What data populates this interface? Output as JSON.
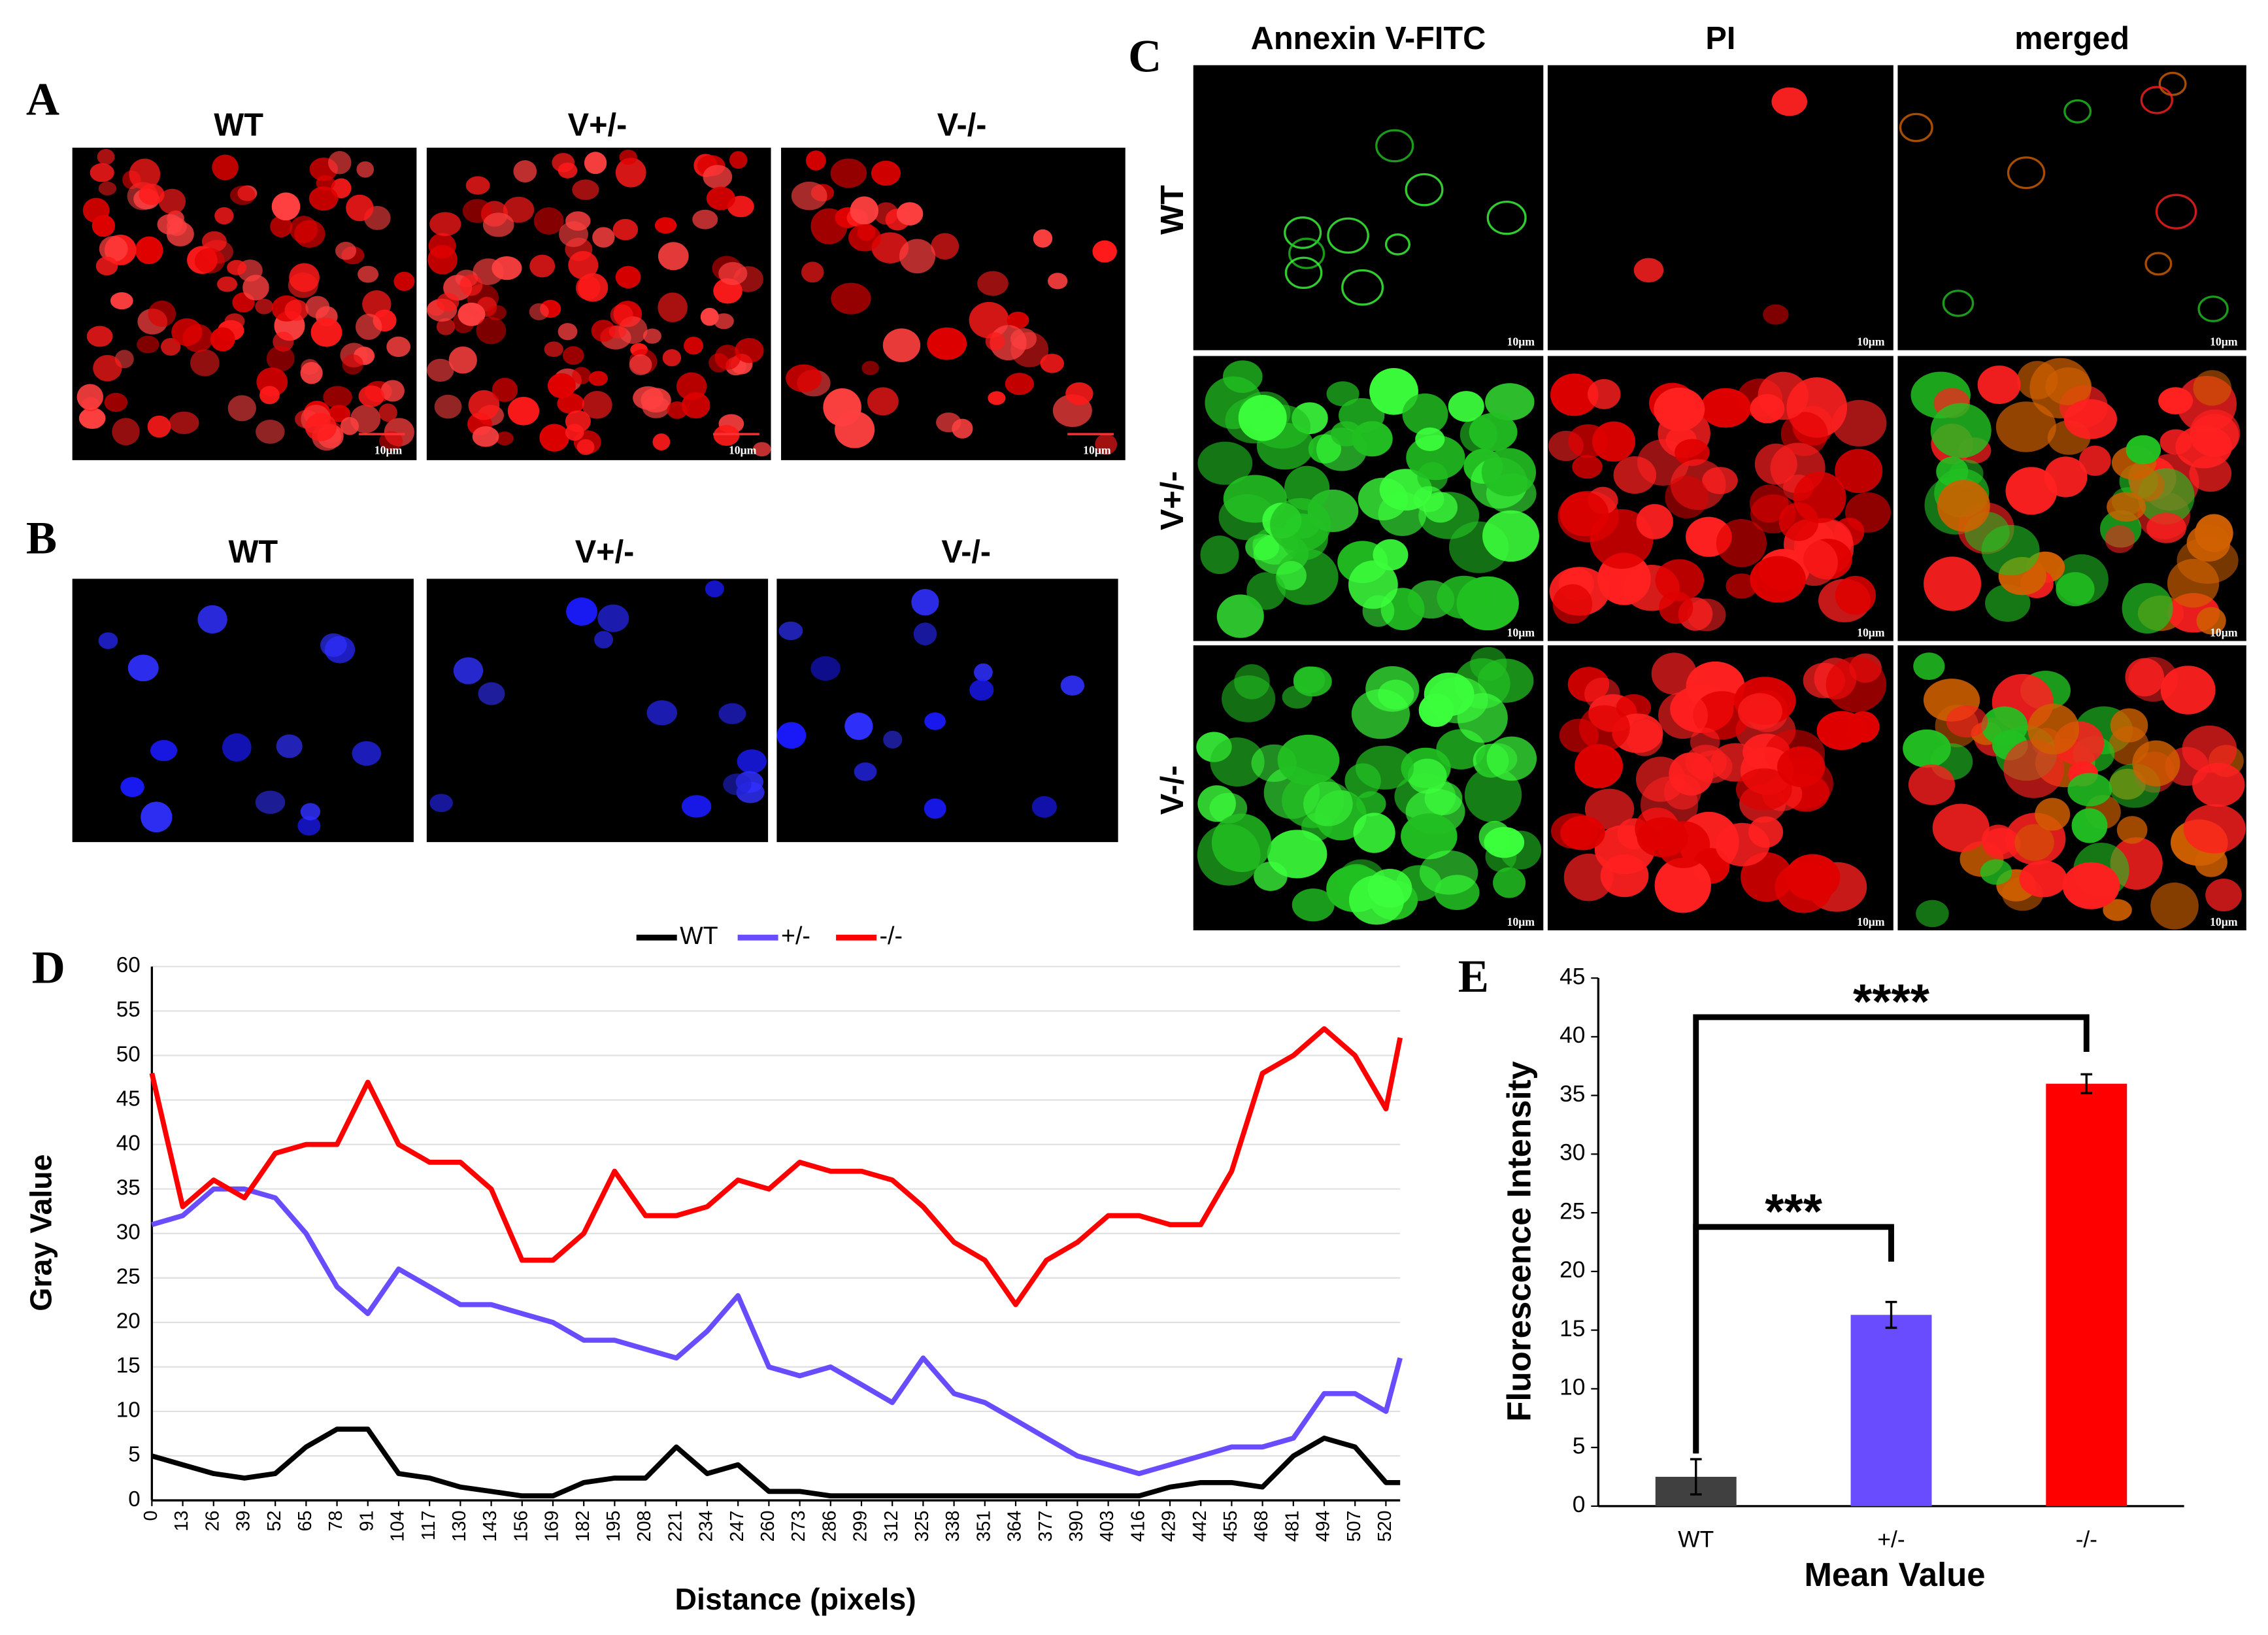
{
  "panels": {
    "A": {
      "label": "A",
      "columns": [
        "WT",
        "V+/-",
        "V-/-"
      ],
      "scale_bar": "10μm"
    },
    "B": {
      "label": "B",
      "columns": [
        "WT",
        "V+/-",
        "V-/-"
      ]
    },
    "C": {
      "label": "C",
      "columns": [
        "Annexin V-FITC",
        "PI",
        "merged"
      ],
      "rows": [
        "WT",
        "V+/-",
        "V-/-"
      ],
      "scale_bar": "10μm"
    },
    "D": {
      "label": "D"
    },
    "E": {
      "label": "E"
    }
  },
  "chart_data": [
    {
      "type": "line",
      "xlabel": "Distance (pixels)",
      "ylabel": "Gray Value",
      "grid": true,
      "legend": "top",
      "x": [
        0,
        13,
        26,
        39,
        52,
        65,
        78,
        91,
        104,
        117,
        130,
        143,
        156,
        169,
        182,
        195,
        208,
        221,
        234,
        247,
        260,
        273,
        286,
        299,
        312,
        325,
        338,
        351,
        364,
        377,
        390,
        403,
        416,
        429,
        442,
        455,
        468,
        481,
        494,
        507,
        520,
        526
      ],
      "xlim": [
        0,
        526
      ],
      "xticks": [
        0,
        13,
        26,
        39,
        52,
        65,
        78,
        91,
        104,
        117,
        130,
        143,
        156,
        169,
        182,
        195,
        208,
        221,
        234,
        247,
        260,
        273,
        286,
        299,
        312,
        325,
        338,
        351,
        364,
        377,
        390,
        403,
        416,
        429,
        442,
        455,
        468,
        481,
        494,
        507,
        520
      ],
      "ylim": [
        0,
        60
      ],
      "yticks": [
        0,
        5,
        10,
        15,
        20,
        25,
        30,
        35,
        40,
        45,
        50,
        55,
        60
      ],
      "series": [
        {
          "name": "WT",
          "color": "#000000",
          "values": [
            5,
            4,
            3,
            2.5,
            3,
            6,
            8,
            8,
            3,
            2.5,
            1.5,
            1,
            0.5,
            0.5,
            2,
            2.5,
            2.5,
            6,
            3,
            4,
            1,
            1,
            0.5,
            0.5,
            0.5,
            0.5,
            0.5,
            0.5,
            0.5,
            0.5,
            0.5,
            0.5,
            0.5,
            1.5,
            2,
            2,
            1.5,
            5,
            7,
            6,
            2,
            2
          ]
        },
        {
          "name": "+/-",
          "color": "#6a4cff",
          "values": [
            31,
            32,
            35,
            35,
            34,
            30,
            24,
            21,
            26,
            24,
            22,
            22,
            21,
            20,
            18,
            18,
            17,
            16,
            19,
            23,
            15,
            14,
            15,
            13,
            11,
            16,
            12,
            11,
            9,
            7,
            5,
            4,
            3,
            4,
            5,
            6,
            6,
            7,
            12,
            12,
            10,
            16
          ]
        },
        {
          "name": "-/-",
          "color": "#ff0000",
          "values": [
            48,
            33,
            36,
            34,
            39,
            40,
            40,
            47,
            40,
            38,
            38,
            35,
            27,
            27,
            30,
            37,
            32,
            32,
            33,
            36,
            35,
            38,
            37,
            37,
            36,
            33,
            29,
            27,
            22,
            27,
            29,
            32,
            32,
            31,
            31,
            37,
            48,
            50,
            53,
            50,
            44,
            52
          ]
        }
      ]
    },
    {
      "type": "bar",
      "xlabel": "Mean Value",
      "ylabel": "Fluorescence Intensity",
      "categories": [
        "WT",
        "+/-",
        "-/-"
      ],
      "values": [
        2.5,
        16.3,
        36
      ],
      "errors": [
        1.5,
        1.1,
        0.8
      ],
      "colors": [
        "#404040",
        "#6a4cff",
        "#ff0000"
      ],
      "ylim": [
        0,
        45
      ],
      "yticks": [
        0,
        5,
        10,
        15,
        20,
        25,
        30,
        35,
        40,
        45
      ],
      "annotations": [
        "***",
        "****"
      ]
    }
  ]
}
